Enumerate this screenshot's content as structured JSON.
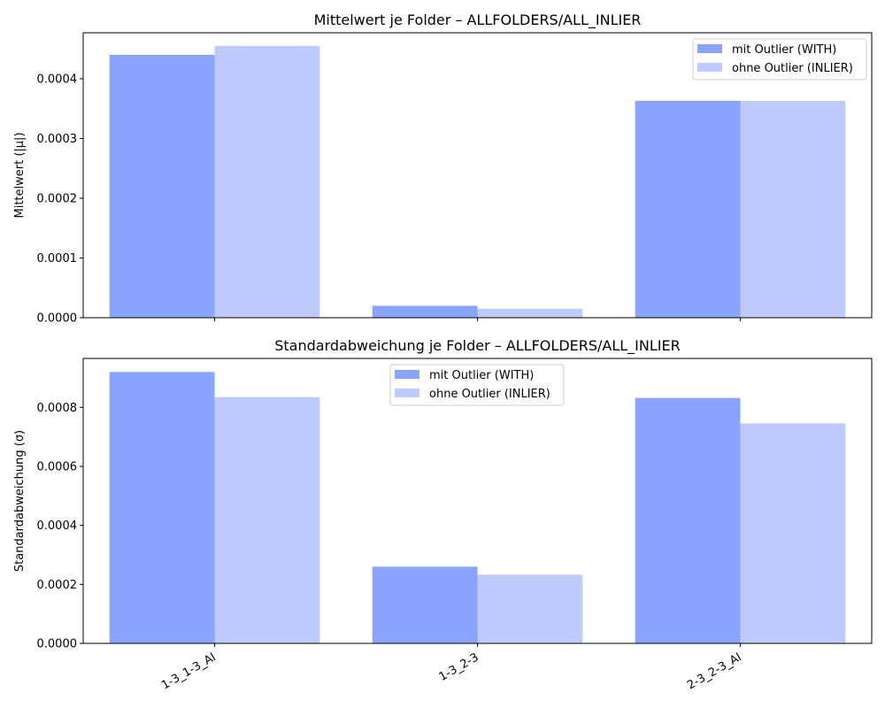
{
  "colors": {
    "with": "#8aa3ff",
    "inlier": "#bfcbff",
    "axis": "#000000",
    "legend_border": "#cccccc"
  },
  "chart_data": [
    {
      "type": "bar",
      "title": "Mittelwert je Folder – ALLFOLDERS/ALL_INLIER",
      "ylabel": "Mittelwert (|µ|)",
      "xlabel": "",
      "categories": [
        "1-3_1-3_Al",
        "1-3_2-3",
        "2-3_2-3_Al"
      ],
      "ylim": [
        0,
        0.000477
      ],
      "yticks": [
        "0.0000",
        "0.0001",
        "0.0002",
        "0.0003",
        "0.0004"
      ],
      "legend_position": "upper right",
      "show_xticklabels": false,
      "series": [
        {
          "name": "mit Outlier (WITH)",
          "values": [
            0.00044,
            2e-05,
            0.000363
          ]
        },
        {
          "name": "ohne Outlier (INLIER)",
          "values": [
            0.000455,
            1.5e-05,
            0.000363
          ]
        }
      ]
    },
    {
      "type": "bar",
      "title": "Standardabweichung je Folder – ALLFOLDERS/ALL_INLIER",
      "ylabel": "Standardabweichung (σ)",
      "xlabel": "",
      "categories": [
        "1-3_1-3_Al",
        "1-3_2-3",
        "2-3_2-3_Al"
      ],
      "ylim": [
        0,
        0.000966
      ],
      "yticks": [
        "0.0000",
        "0.0002",
        "0.0004",
        "0.0006",
        "0.0008"
      ],
      "legend_position": "upper center",
      "show_xticklabels": true,
      "series": [
        {
          "name": "mit Outlier (WITH)",
          "values": [
            0.00092,
            0.00026,
            0.000832
          ]
        },
        {
          "name": "ohne Outlier (INLIER)",
          "values": [
            0.000835,
            0.000233,
            0.000746
          ]
        }
      ]
    }
  ]
}
